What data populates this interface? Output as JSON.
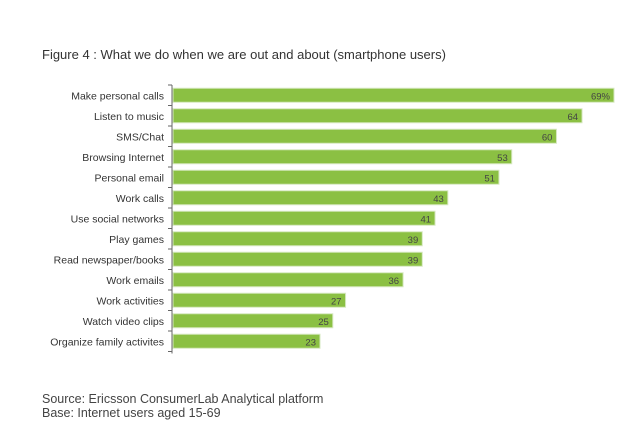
{
  "chart_data": {
    "type": "bar",
    "orientation": "horizontal",
    "title": "Figure 4 : What we do when we are out and about (smartphone users)",
    "categories": [
      "Make personal calls",
      "Listen to music",
      "SMS/Chat",
      "Browsing Internet",
      "Personal email",
      "Work calls",
      "Use social networks",
      "Play games",
      "Read newspaper/books",
      "Work emails",
      "Work activities",
      "Watch video clips",
      "Organize family activites"
    ],
    "values": [
      69,
      64,
      60,
      53,
      51,
      43,
      41,
      39,
      39,
      36,
      27,
      25,
      23
    ],
    "data_labels": [
      "69%",
      "64",
      "60",
      "53",
      "51",
      "43",
      "41",
      "39",
      "39",
      "36",
      "27",
      "25",
      "23"
    ],
    "unit": "%",
    "xlim": [
      0,
      69
    ],
    "grid": false,
    "bar_color": "#8bc043"
  },
  "source": "Source: Ericsson ConsumerLab Analytical platform",
  "base": "Base: Internet users aged 15-69"
}
